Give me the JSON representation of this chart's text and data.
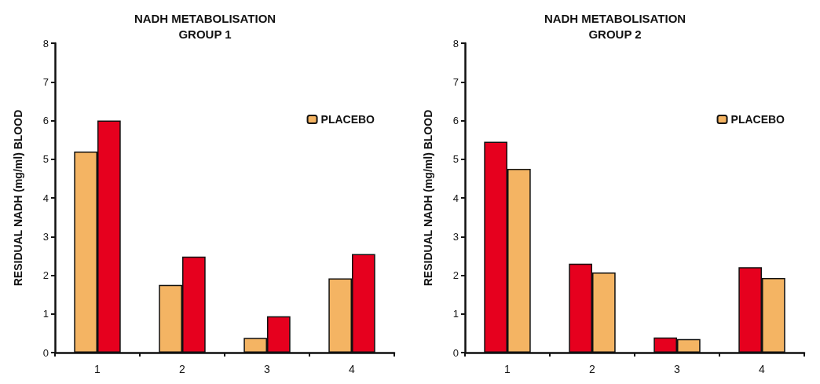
{
  "chart_data": [
    {
      "type": "bar",
      "title": "NADH METABOLISATION\nGROUP 1",
      "ylabel": "RESIDUAL NADH (mg/ml) BLOOD",
      "categories": [
        "1",
        "2",
        "3",
        "4"
      ],
      "series": [
        {
          "name": "PLACEBO",
          "color": "#f4b463",
          "values": [
            5.2,
            1.75,
            0.38,
            1.92
          ]
        },
        {
          "color": "#e6001e",
          "values": [
            6.0,
            2.48,
            0.94,
            2.55
          ]
        }
      ],
      "ylim": [
        0,
        8
      ],
      "yticks": [
        0,
        1,
        2,
        3,
        4,
        5,
        6,
        7,
        8
      ],
      "grid": false,
      "legend": "top right"
    },
    {
      "type": "bar",
      "title": "NADH METABOLISATION\nGROUP 2",
      "ylabel": "RESIDUAL NADH (mg/ml) BLOOD",
      "categories": [
        "1",
        "2",
        "3",
        "4"
      ],
      "series": [
        {
          "color": "#e6001e",
          "values": [
            5.45,
            2.3,
            0.39,
            2.21
          ]
        },
        {
          "name": "PLACEBO",
          "color": "#f4b463",
          "values": [
            4.75,
            2.07,
            0.35,
            1.93
          ]
        }
      ],
      "ylim": [
        0,
        8
      ],
      "yticks": [
        0,
        1,
        2,
        3,
        4,
        5,
        6,
        7,
        8
      ],
      "grid": false,
      "legend": "top right"
    }
  ]
}
